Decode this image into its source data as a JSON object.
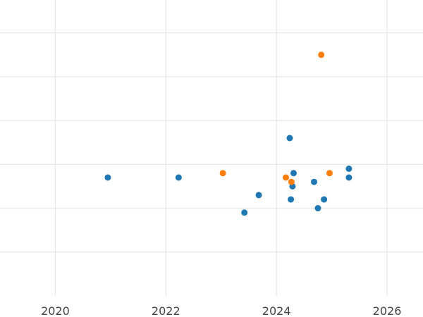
{
  "chart_data": {
    "type": "scatter",
    "title": "",
    "xlabel": "",
    "ylabel": "",
    "xlim": [
      2019.0,
      2026.65
    ],
    "ylim": [
      0.0,
      6.75
    ],
    "x_ticks": [
      "2020",
      "2022",
      "2024",
      "2026"
    ],
    "y_grid_values": [
      1,
      2,
      3,
      4,
      5,
      6
    ],
    "grid": true,
    "legend": "none",
    "series": [
      {
        "color": "#1f77b4",
        "points": [
          {
            "x": 2020.95,
            "y": 2.7
          },
          {
            "x": 2022.23,
            "y": 2.7
          },
          {
            "x": 2023.42,
            "y": 1.9
          },
          {
            "x": 2023.68,
            "y": 2.3
          },
          {
            "x": 2024.24,
            "y": 3.6
          },
          {
            "x": 2024.26,
            "y": 2.2
          },
          {
            "x": 2024.29,
            "y": 2.5
          },
          {
            "x": 2024.31,
            "y": 2.8
          },
          {
            "x": 2024.68,
            "y": 2.6
          },
          {
            "x": 2024.75,
            "y": 2.0
          },
          {
            "x": 2024.86,
            "y": 2.2
          },
          {
            "x": 2025.31,
            "y": 2.9
          },
          {
            "x": 2025.31,
            "y": 2.7
          }
        ]
      },
      {
        "color": "#ff7f0e",
        "points": [
          {
            "x": 2023.03,
            "y": 2.8
          },
          {
            "x": 2024.17,
            "y": 2.7
          },
          {
            "x": 2024.27,
            "y": 2.6
          },
          {
            "x": 2024.81,
            "y": 5.5
          },
          {
            "x": 2024.96,
            "y": 2.8
          }
        ]
      }
    ]
  }
}
